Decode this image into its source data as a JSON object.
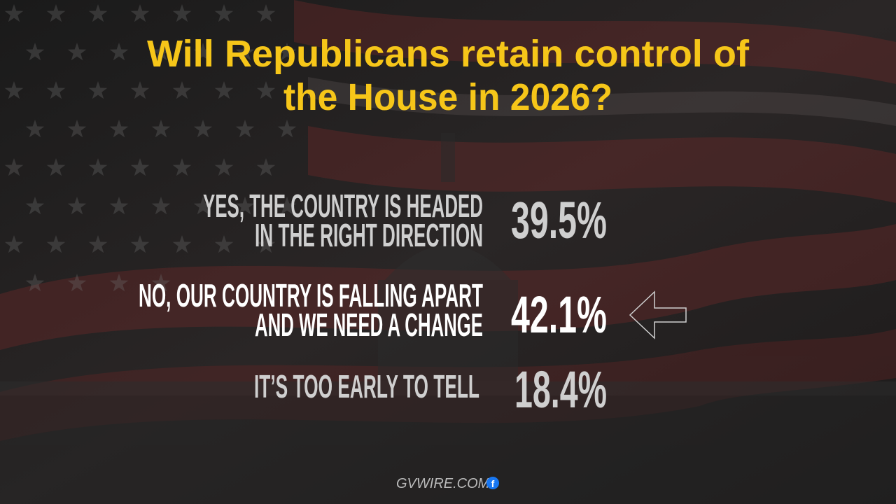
{
  "title": {
    "lines": [
      "Will Republicans retain control of",
      "the House in 2026?"
    ]
  },
  "options": [
    {
      "label_lines": [
        "YES, THE COUNTRY IS HEADED",
        "IN THE RIGHT DIRECTION"
      ],
      "percent": "39.5%"
    },
    {
      "label_lines": [
        "NO, OUR COUNTRY IS FALLING APART",
        "AND WE NEED A CHANGE"
      ],
      "percent": "42.1%"
    },
    {
      "label_lines": [
        "IT’S TOO EARLY TO TELL"
      ],
      "percent": "18.4%"
    }
  ],
  "footer": {
    "logo": "GVWIRE.COM"
  }
}
